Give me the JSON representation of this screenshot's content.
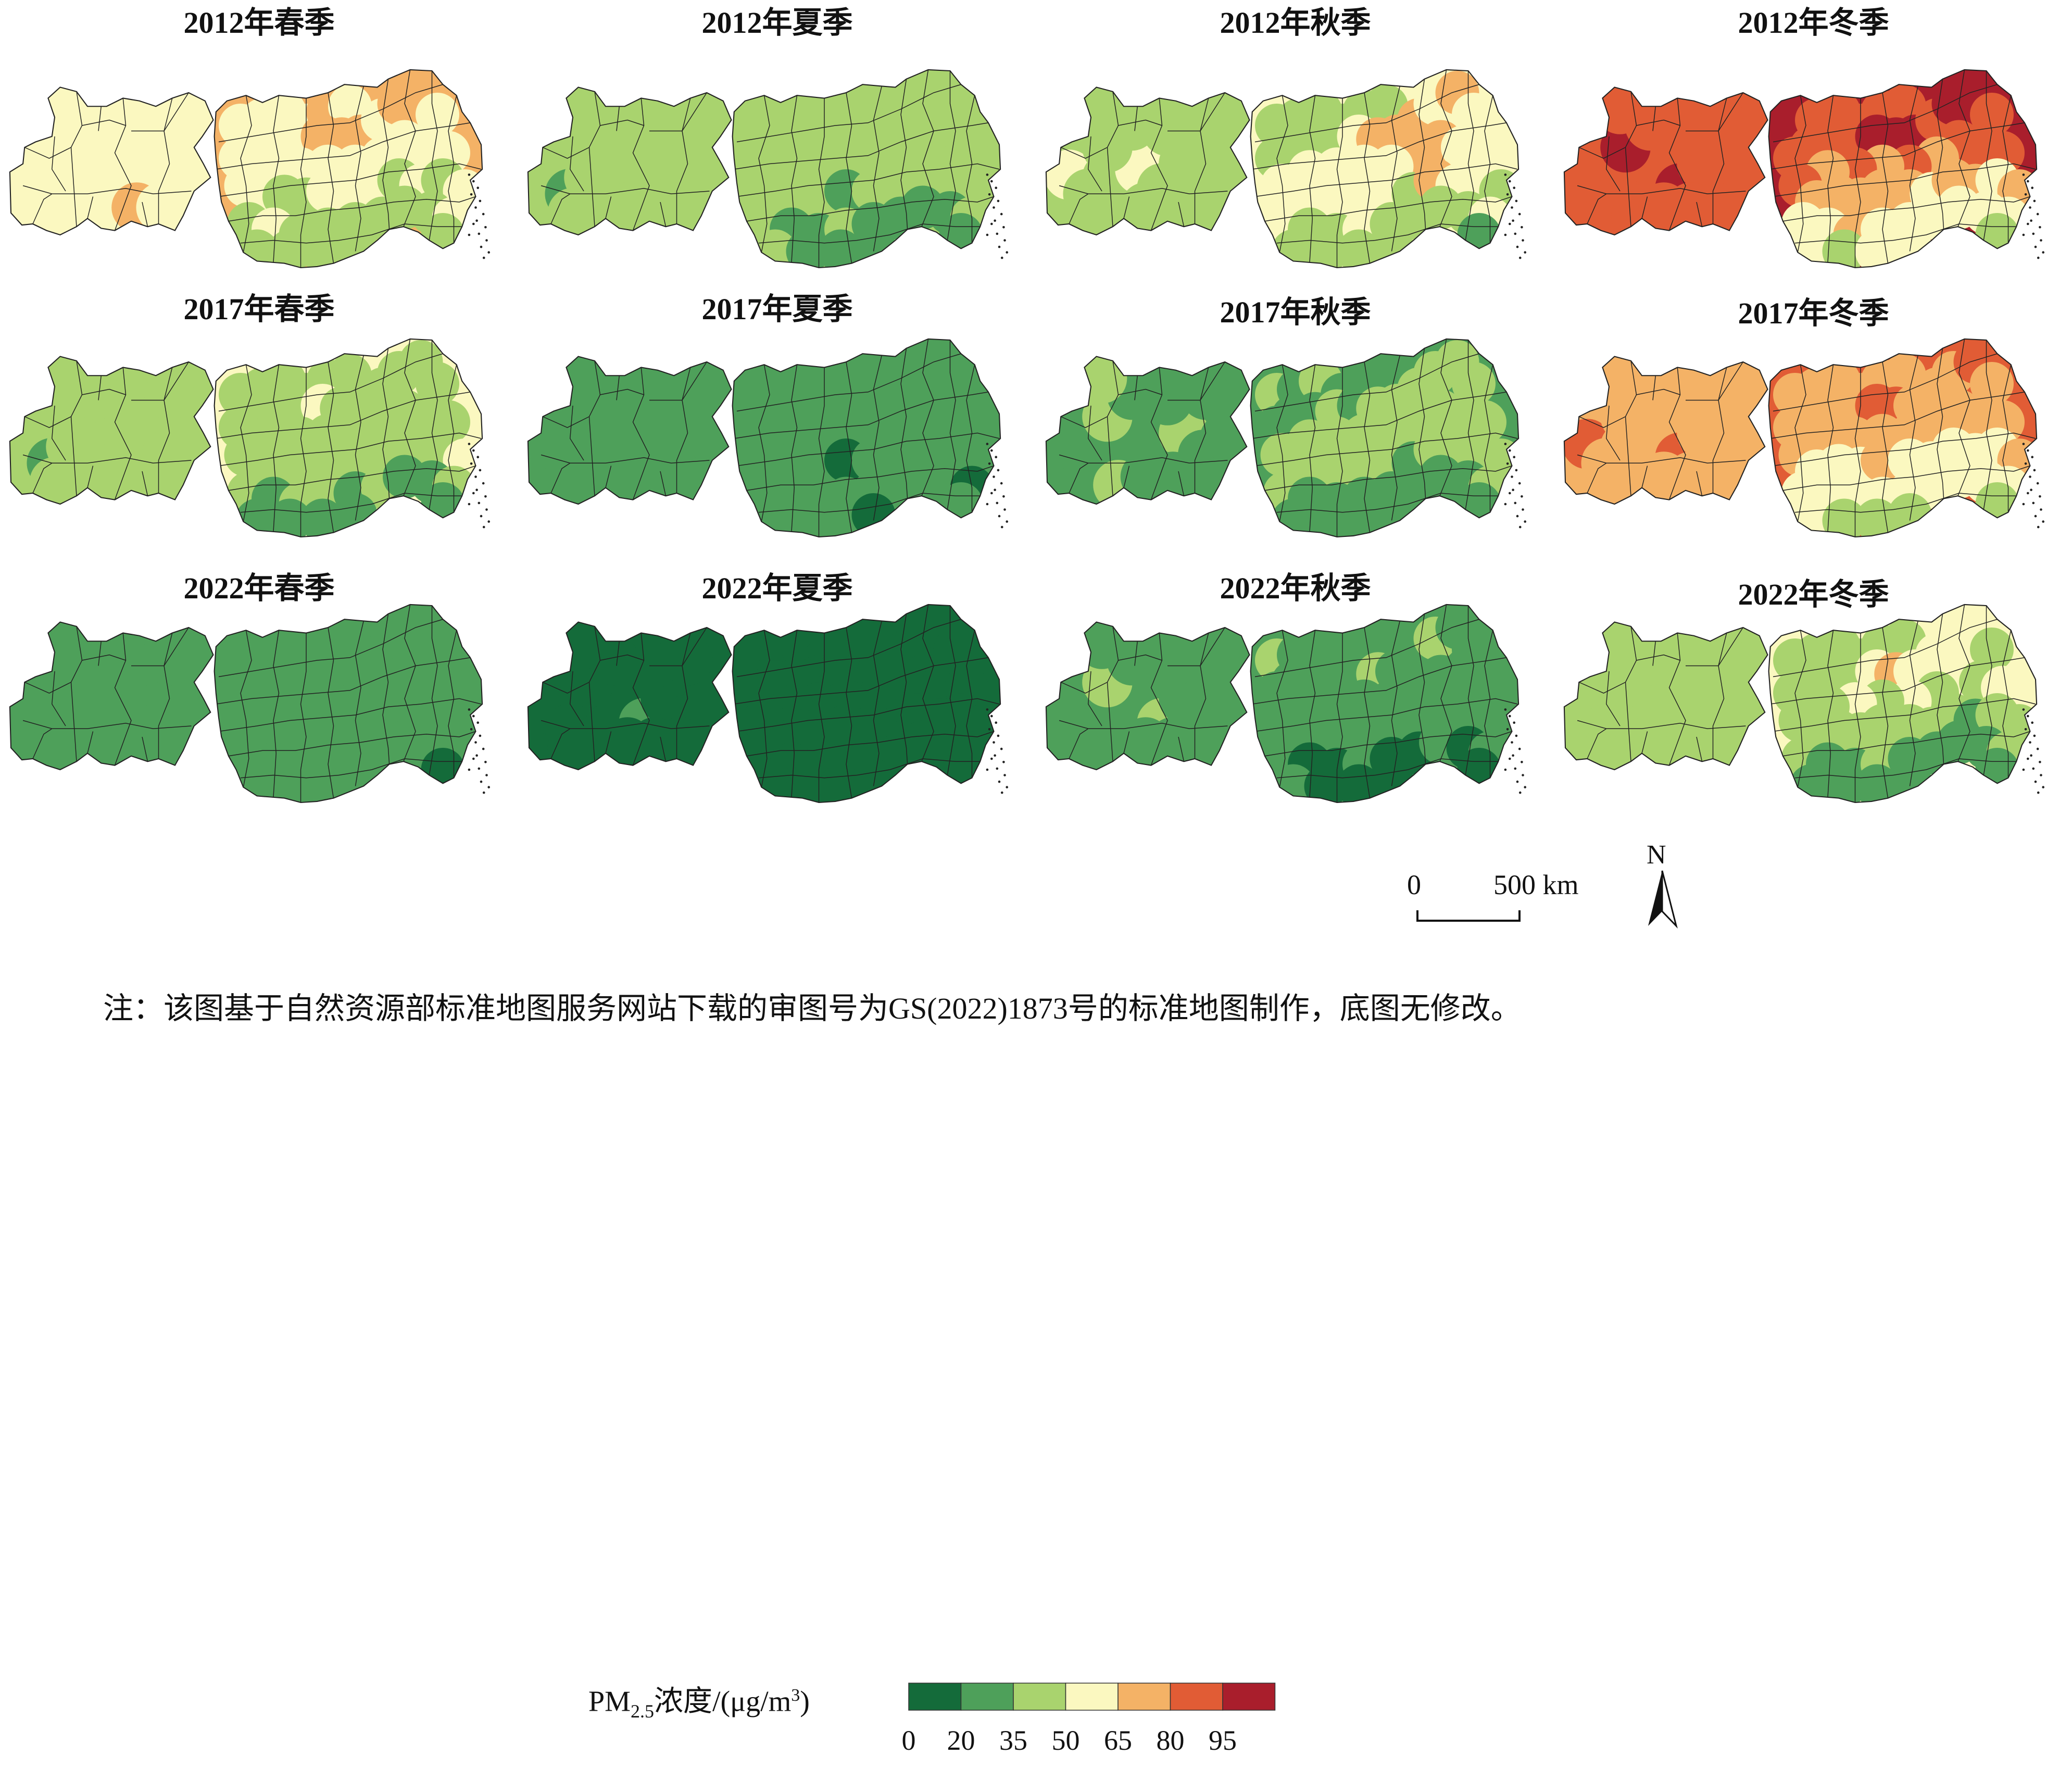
{
  "map": {
    "panels": [
      {
        "title": "2012年春季",
        "region_classes": [
          4,
          4,
          4,
          4,
          4,
          4,
          4,
          4,
          4,
          4,
          4,
          4,
          4,
          4,
          5,
          4,
          4,
          4,
          4,
          4,
          5,
          5,
          5,
          4,
          5,
          5,
          4,
          4,
          4,
          4,
          4,
          4,
          4,
          4,
          4,
          4,
          4,
          3,
          3,
          4,
          4,
          4,
          3,
          4,
          3,
          4,
          3,
          4,
          3,
          3,
          3,
          3,
          3,
          3,
          4,
          3,
          3,
          3,
          3,
          3
        ]
      },
      {
        "title": "2012年夏季",
        "region_classes": [
          3,
          3,
          2,
          3,
          3,
          3,
          3,
          3,
          3,
          3,
          3,
          3,
          3,
          3,
          3,
          3,
          3,
          3,
          3,
          3,
          3,
          3,
          3,
          3,
          3,
          3,
          3,
          3,
          3,
          3,
          3,
          3,
          3,
          3,
          3,
          3,
          3,
          3,
          3,
          2,
          3,
          3,
          3,
          3,
          3,
          3,
          3,
          2,
          2,
          3,
          2,
          2,
          2,
          2,
          3,
          2,
          3,
          2,
          2,
          2
        ]
      },
      {
        "title": "2012年秋季",
        "region_classes": [
          3,
          4,
          3,
          3,
          3,
          4,
          3,
          3,
          3,
          3,
          3,
          3,
          3,
          3,
          3,
          3,
          3,
          3,
          3,
          3,
          4,
          5,
          5,
          5,
          4,
          5,
          4,
          5,
          4,
          4,
          5,
          4,
          4,
          4,
          4,
          4,
          4,
          4,
          4,
          4,
          4,
          3,
          5,
          4,
          4,
          3,
          4,
          3,
          3,
          4,
          3,
          3,
          3,
          3,
          4,
          2,
          3,
          3,
          3,
          3
        ]
      },
      {
        "title": "2012年冬季",
        "region_classes": [
          6,
          6,
          6,
          6,
          6,
          6,
          7,
          6,
          6,
          6,
          7,
          6,
          6,
          6,
          6,
          6,
          6,
          6,
          6,
          6,
          7,
          7,
          7,
          6,
          7,
          7,
          6,
          6,
          6,
          6,
          5,
          6,
          5,
          6,
          5,
          6,
          5,
          5,
          5,
          5,
          5,
          4,
          5,
          5,
          4,
          5,
          4,
          4,
          5,
          4,
          4,
          4,
          4,
          4,
          4,
          3,
          4,
          3,
          4,
          4
        ]
      },
      {
        "title": "2017年春季",
        "region_classes": [
          3,
          3,
          2,
          3,
          3,
          3,
          3,
          3,
          3,
          3,
          3,
          3,
          3,
          3,
          3,
          3,
          3,
          3,
          3,
          3,
          4,
          3,
          3,
          3,
          3,
          3,
          3,
          3,
          3,
          3,
          3,
          3,
          3,
          3,
          3,
          3,
          3,
          3,
          3,
          3,
          3,
          3,
          3,
          3,
          3,
          4,
          3,
          2,
          3,
          3,
          2,
          3,
          2,
          2,
          3,
          2,
          2,
          2,
          2,
          2
        ]
      },
      {
        "title": "2017年夏季",
        "region_classes": [
          2,
          2,
          2,
          2,
          2,
          2,
          2,
          2,
          2,
          2,
          2,
          2,
          2,
          2,
          2,
          2,
          2,
          2,
          2,
          2,
          2,
          2,
          2,
          2,
          2,
          2,
          2,
          2,
          2,
          2,
          2,
          2,
          2,
          2,
          2,
          2,
          2,
          2,
          2,
          1,
          2,
          2,
          2,
          2,
          2,
          2,
          2,
          2,
          2,
          2,
          2,
          2,
          2,
          2,
          1,
          2,
          2,
          2,
          2,
          1
        ]
      },
      {
        "title": "2017年秋季",
        "region_classes": [
          2,
          2,
          2,
          2,
          2,
          2,
          2,
          3,
          2,
          2,
          3,
          2,
          3,
          2,
          2,
          2,
          2,
          2,
          2,
          3,
          2,
          3,
          3,
          3,
          3,
          3,
          3,
          3,
          3,
          3,
          3,
          3,
          3,
          3,
          3,
          3,
          3,
          3,
          3,
          3,
          3,
          2,
          3,
          3,
          3,
          3,
          3,
          2,
          2,
          2,
          2,
          2,
          2,
          2,
          3,
          2,
          2,
          2,
          2,
          2
        ]
      },
      {
        "title": "2017年冬季",
        "region_classes": [
          5,
          6,
          5,
          5,
          5,
          5,
          6,
          5,
          5,
          5,
          5,
          5,
          5,
          5,
          5,
          5,
          5,
          5,
          5,
          5,
          6,
          6,
          5,
          5,
          5,
          6,
          5,
          5,
          5,
          5,
          5,
          5,
          5,
          5,
          5,
          5,
          4,
          4,
          4,
          5,
          4,
          4,
          4,
          4,
          4,
          5,
          4,
          4,
          4,
          4,
          4,
          4,
          4,
          4,
          4,
          3,
          4,
          3,
          3,
          3
        ]
      },
      {
        "title": "2022年春季",
        "region_classes": [
          2,
          2,
          2,
          2,
          2,
          2,
          2,
          2,
          2,
          2,
          2,
          2,
          2,
          2,
          2,
          2,
          2,
          2,
          2,
          2,
          2,
          2,
          2,
          2,
          2,
          2,
          2,
          2,
          2,
          2,
          2,
          2,
          2,
          2,
          2,
          2,
          2,
          2,
          2,
          2,
          2,
          2,
          2,
          2,
          2,
          2,
          2,
          2,
          2,
          2,
          2,
          2,
          2,
          2,
          2,
          1,
          2,
          2,
          2,
          2
        ]
      },
      {
        "title": "2022年夏季",
        "region_classes": [
          1,
          1,
          1,
          1,
          1,
          1,
          2,
          1,
          1,
          1,
          1,
          1,
          1,
          1,
          1,
          1,
          1,
          1,
          1,
          1,
          1,
          1,
          1,
          1,
          1,
          1,
          1,
          1,
          1,
          1,
          1,
          1,
          1,
          1,
          1,
          1,
          1,
          1,
          1,
          1,
          1,
          1,
          1,
          1,
          1,
          1,
          1,
          1,
          1,
          1,
          1,
          1,
          1,
          1,
          1,
          1,
          1,
          1,
          1,
          1
        ]
      },
      {
        "title": "2022年秋季",
        "region_classes": [
          2,
          2,
          2,
          2,
          2,
          2,
          3,
          2,
          2,
          2,
          3,
          2,
          2,
          2,
          2,
          2,
          2,
          2,
          2,
          2,
          2,
          3,
          2,
          2,
          3,
          2,
          2,
          2,
          2,
          2,
          2,
          2,
          2,
          2,
          2,
          2,
          2,
          2,
          2,
          2,
          2,
          2,
          2,
          2,
          2,
          2,
          2,
          1,
          1,
          2,
          1,
          1,
          2,
          1,
          2,
          1,
          2,
          1,
          1,
          1
        ]
      },
      {
        "title": "2022年冬季",
        "region_classes": [
          3,
          3,
          3,
          3,
          3,
          3,
          3,
          3,
          3,
          3,
          3,
          3,
          3,
          3,
          3,
          3,
          3,
          3,
          3,
          3,
          4,
          5,
          4,
          4,
          4,
          4,
          3,
          4,
          3,
          4,
          3,
          4,
          3,
          4,
          3,
          3,
          3,
          3,
          3,
          3,
          3,
          3,
          3,
          2,
          3,
          3,
          3,
          2,
          2,
          3,
          2,
          2,
          2,
          2,
          3,
          2,
          2,
          2,
          2,
          2
        ]
      }
    ]
  },
  "legend": {
    "title_prefix": "PM",
    "title_sub": "2.5",
    "title_mid": "浓度/(μg/m",
    "title_sup": "3",
    "title_suffix": ")",
    "colors": [
      "#146b3a",
      "#4ea05a",
      "#a9d36e",
      "#fbf8c0",
      "#f4b266",
      "#e15c35",
      "#a91e2c"
    ],
    "ticks": [
      "0",
      "20",
      "35",
      "50",
      "65",
      "80",
      "95"
    ]
  },
  "scale_bar": {
    "zero_label": "0",
    "length_label": "500 km"
  },
  "north_arrow": {
    "label": "N"
  },
  "note": "注：该图基于自然资源部标准地图服务网站下载的审图号为GS(2022)1873号的标准地图制作，底图无修改。"
}
